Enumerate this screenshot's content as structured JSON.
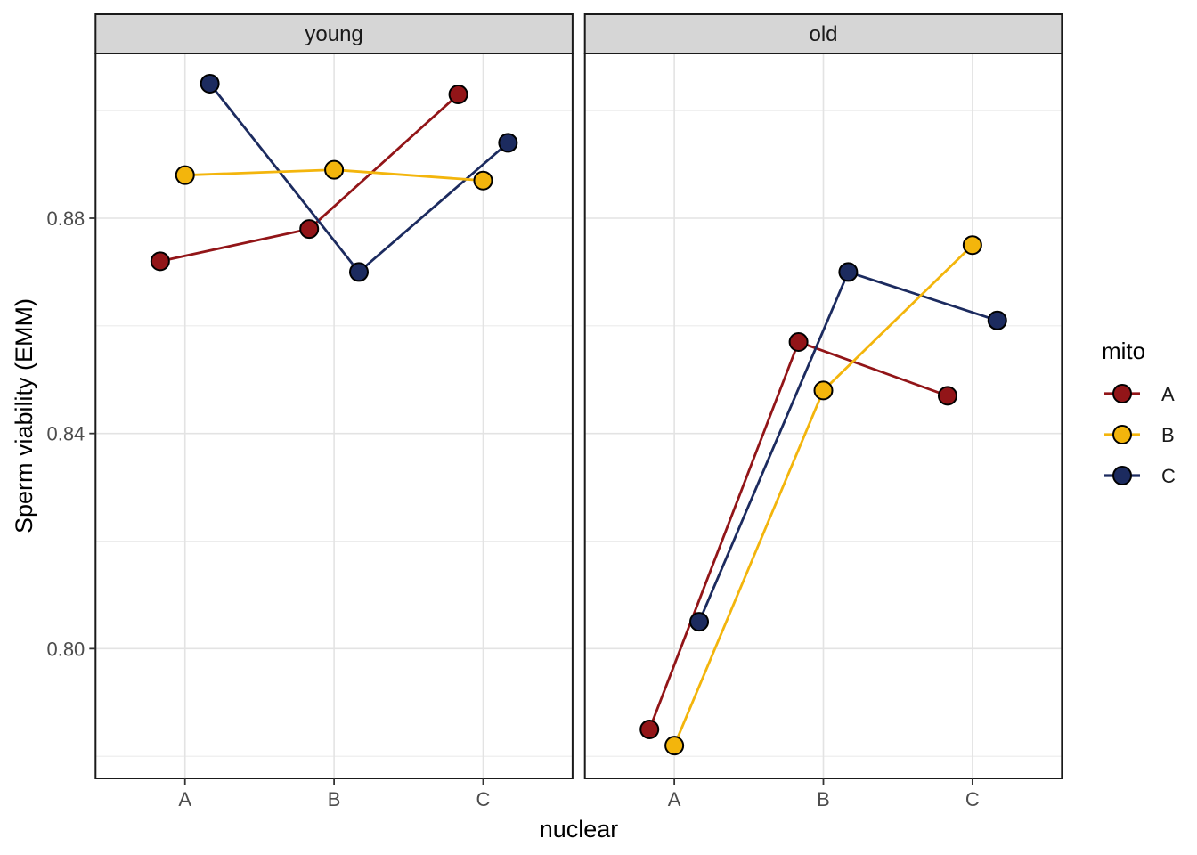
{
  "chart_data": {
    "type": "line",
    "title": "",
    "xlabel": "nuclear",
    "ylabel": "Sperm viability (EMM)",
    "legend_title": "mito",
    "legend_position": "right",
    "facets": [
      {
        "label": "young"
      },
      {
        "label": "old"
      }
    ],
    "x_categories": [
      "A",
      "B",
      "C"
    ],
    "y_axis": {
      "tick_labels": [
        "0.88",
        "0.84",
        "0.80"
      ],
      "tick_values": [
        0.88,
        0.84,
        0.8
      ],
      "minor_values": [
        0.9,
        0.86,
        0.82,
        0.78
      ],
      "ylim": [
        0.776,
        0.911
      ]
    },
    "grid": true,
    "series": [
      {
        "name": "A",
        "color": "#921518",
        "values": {
          "young": [
            0.872,
            0.878,
            0.903
          ],
          "old": [
            0.785,
            0.857,
            0.847
          ]
        }
      },
      {
        "name": "B",
        "color": "#F3B50C",
        "values": {
          "young": [
            0.888,
            0.889,
            0.887
          ],
          "old": [
            0.782,
            0.848,
            0.875
          ]
        }
      },
      {
        "name": "C",
        "color": "#1C2B5F",
        "values": {
          "young": [
            0.905,
            0.87,
            0.894
          ],
          "old": [
            0.805,
            0.87,
            0.861
          ]
        }
      }
    ],
    "style": {
      "strip_fill": "#D6D6D6",
      "panel_border": "#1A1A1A",
      "grid_major": "#E3E3E3",
      "grid_minor": "#ECECEC",
      "point_stroke": "#000000",
      "tick_color": "#333333",
      "tick_label_color": "#4D4D4D",
      "title_color": "#000000"
    }
  }
}
